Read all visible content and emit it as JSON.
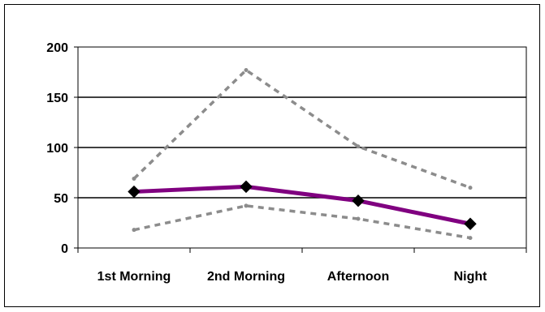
{
  "chart_data": {
    "type": "line",
    "title": "",
    "xlabel": "",
    "ylabel": "",
    "categories": [
      "1st Morning",
      "2nd Morning",
      "Afternoon",
      "Night"
    ],
    "ylim": [
      0,
      200
    ],
    "yticks": [
      "0",
      "50",
      "100",
      "150",
      "200"
    ],
    "grid": true,
    "series": [
      {
        "values": [
          69,
          177,
          101,
          60
        ],
        "color": "#8c8c8c",
        "style": "dashed"
      },
      {
        "values": [
          56,
          61,
          47,
          24
        ],
        "color": "#800080",
        "style": "solid",
        "marker": "diamond",
        "marker_color": "#000000"
      },
      {
        "values": [
          18,
          42,
          29,
          10
        ],
        "color": "#8c8c8c",
        "style": "dashed"
      }
    ]
  }
}
